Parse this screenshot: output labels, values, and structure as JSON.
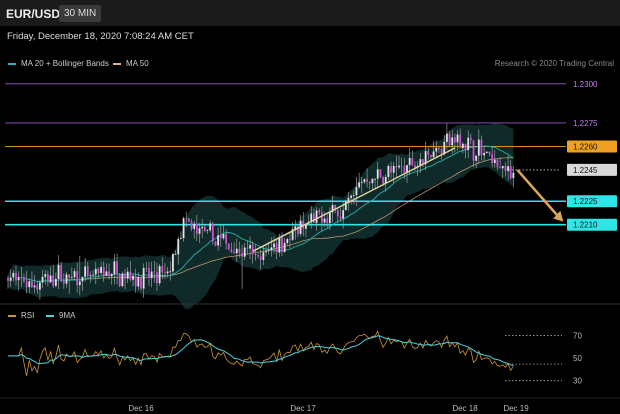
{
  "header": {
    "symbol": "EUR/USD",
    "timeframe": "30 MIN",
    "datetime": "Friday, December 18, 2020 7:08:24 AM CET",
    "credit": "Research © 2020 Trading Central"
  },
  "legend": {
    "ma20": "MA 20 + Bollinger Bands",
    "ma50": "MA 50",
    "ma20_color": "#1fb5ac",
    "ma50_color": "#e0b080"
  },
  "rsi_legend": {
    "rsi": "RSI",
    "ma": "9MA",
    "rsi_color": "#c8953a",
    "ma_color": "#4fd1e0"
  },
  "chart_data": {
    "type": "candlestick",
    "x_labels": [
      "Dec 16",
      "Dec 17",
      "Dec 18",
      "Dec 19"
    ],
    "price_range": [
      1.216,
      1.2305
    ],
    "levels": [
      {
        "value": 1.23,
        "label": "1.2300",
        "color": "#9b59d0",
        "style": "line"
      },
      {
        "value": 1.2275,
        "label": "1.2275",
        "color": "#9b59d0",
        "style": "line"
      },
      {
        "value": 1.226,
        "label": "1.2260",
        "color": "#f0a020",
        "style": "line"
      },
      {
        "value": 1.2245,
        "label": "1.2245",
        "color": "#cccccc",
        "style": "dotted"
      },
      {
        "value": 1.2225,
        "label": "1.2225",
        "color": "#2ee6e6",
        "style": "thick"
      },
      {
        "value": 1.221,
        "label": "1.2210",
        "color": "#2ee6e6",
        "style": "thick"
      }
    ],
    "anchors": [
      [
        0,
        1.2176
      ],
      [
        10,
        1.2172
      ],
      [
        18,
        1.2177
      ],
      [
        30,
        1.2175
      ],
      [
        38,
        1.218
      ],
      [
        50,
        1.2176
      ],
      [
        60,
        1.2178
      ],
      [
        66,
        1.221
      ],
      [
        80,
        1.22
      ],
      [
        88,
        1.2193
      ],
      [
        95,
        1.2188
      ],
      [
        100,
        1.2198
      ],
      [
        106,
        1.2202
      ],
      [
        118,
        1.2215
      ],
      [
        126,
        1.222
      ],
      [
        132,
        1.2237
      ],
      [
        146,
        1.2244
      ],
      [
        157,
        1.2255
      ],
      [
        166,
        1.2264
      ],
      [
        172,
        1.2262
      ],
      [
        181,
        1.2253
      ],
      [
        188,
        1.2243
      ],
      [
        190,
        1.2245
      ]
    ],
    "trend_line": {
      "from": [
        92,
        1.2193
      ],
      "to": [
        168,
        1.2259
      ]
    },
    "forecast_arrow": {
      "from": [
        190,
        1.2245
      ],
      "to": [
        202,
        1.2212
      ]
    },
    "rsi": {
      "range": [
        20,
        82
      ],
      "ticks": [
        70,
        50,
        30
      ],
      "levels": [
        70,
        30
      ]
    }
  }
}
